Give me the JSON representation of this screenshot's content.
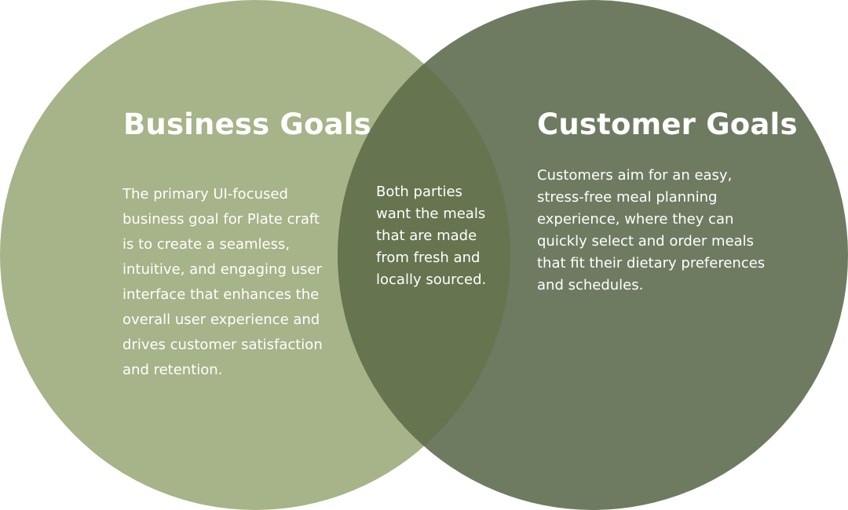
{
  "colors": {
    "left_circle": "#a7b388",
    "right_circle": "#6e7b61",
    "overlap": "#66744f",
    "text": "#ffffff"
  },
  "left": {
    "title": "Business Goals",
    "body": "The primary UI-focused business goal for Plate craft is to create a seamless, intuitive, and engaging user interface that enhances the overall user experience and drives customer satisfaction and retention."
  },
  "right": {
    "title": "Customer Goals",
    "body": "Customers aim for an easy, stress-free meal planning experience, where they can quickly select and order meals that fit their dietary preferences and schedules."
  },
  "overlap": {
    "body": "Both parties want the meals that are made from fresh and locally sourced."
  }
}
